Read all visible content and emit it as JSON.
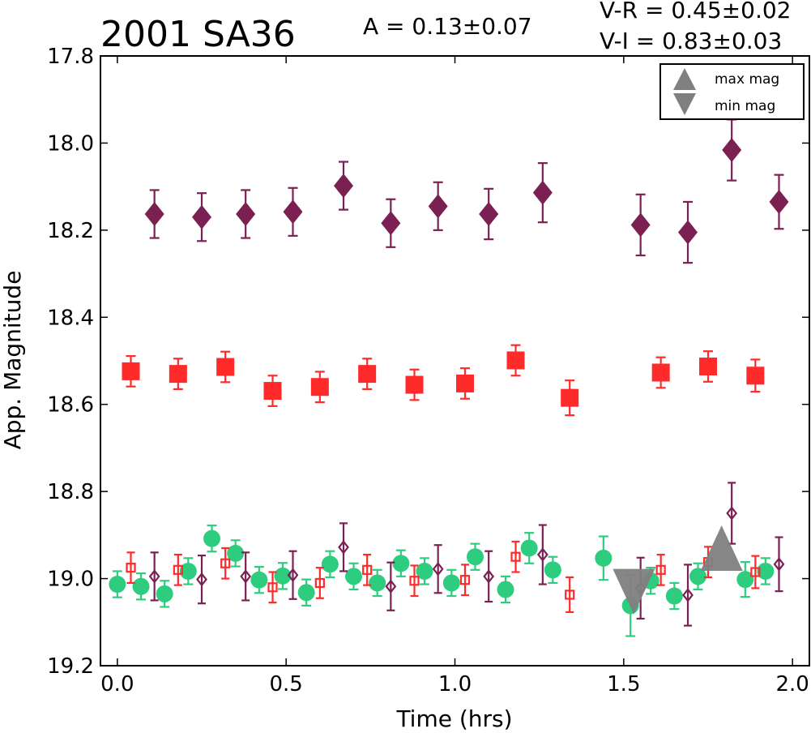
{
  "chart_data": {
    "type": "scatter",
    "title": "2001 SA36",
    "amplitude_text": "A  = 0.13±0.07",
    "color_lines": [
      "V-R = 0.45±0.02",
      "V-I  = 0.83±0.03"
    ],
    "xlabel": "Time (hrs)",
    "ylabel": "App. Magnitude",
    "xlim": [
      -0.05,
      2.05
    ],
    "ylim": [
      19.2,
      17.8
    ],
    "y_inverted": true,
    "grid": false,
    "xticks": [
      "0.0",
      "0.5",
      "1.0",
      "1.5",
      "2.0"
    ],
    "yticks": [
      "17.8",
      "18.0",
      "18.2",
      "18.4",
      "18.6",
      "18.8",
      "19.0",
      "19.2"
    ],
    "legend": {
      "position": "top-right",
      "entries": [
        {
          "label": "max mag",
          "marker": "triangle-up",
          "color": "#808080"
        },
        {
          "label": "min mag",
          "marker": "triangle-down",
          "color": "#808080"
        }
      ]
    },
    "series": [
      {
        "marker": "diamond",
        "filled": true,
        "color": "#7b2052",
        "points": [
          {
            "x": 0.11,
            "y": 18.163,
            "err": 0.055
          },
          {
            "x": 0.25,
            "y": 18.17,
            "err": 0.055
          },
          {
            "x": 0.38,
            "y": 18.163,
            "err": 0.055
          },
          {
            "x": 0.52,
            "y": 18.158,
            "err": 0.055
          },
          {
            "x": 0.67,
            "y": 18.098,
            "err": 0.055
          },
          {
            "x": 0.81,
            "y": 18.184,
            "err": 0.055
          },
          {
            "x": 0.95,
            "y": 18.145,
            "err": 0.055
          },
          {
            "x": 1.1,
            "y": 18.163,
            "err": 0.058
          },
          {
            "x": 1.26,
            "y": 18.114,
            "err": 0.068
          },
          {
            "x": 1.55,
            "y": 18.188,
            "err": 0.07
          },
          {
            "x": 1.69,
            "y": 18.205,
            "err": 0.07
          },
          {
            "x": 1.82,
            "y": 18.016,
            "err": 0.07
          },
          {
            "x": 1.96,
            "y": 18.135,
            "err": 0.062
          }
        ]
      },
      {
        "marker": "square",
        "filled": true,
        "color": "#ff2a2a",
        "points": [
          {
            "x": 0.04,
            "y": 18.524,
            "err": 0.035
          },
          {
            "x": 0.18,
            "y": 18.53,
            "err": 0.035
          },
          {
            "x": 0.32,
            "y": 18.514,
            "err": 0.035
          },
          {
            "x": 0.46,
            "y": 18.569,
            "err": 0.035
          },
          {
            "x": 0.6,
            "y": 18.56,
            "err": 0.035
          },
          {
            "x": 0.74,
            "y": 18.53,
            "err": 0.035
          },
          {
            "x": 0.88,
            "y": 18.555,
            "err": 0.035
          },
          {
            "x": 1.03,
            "y": 18.552,
            "err": 0.035
          },
          {
            "x": 1.18,
            "y": 18.499,
            "err": 0.035
          },
          {
            "x": 1.34,
            "y": 18.585,
            "err": 0.04
          },
          {
            "x": 1.61,
            "y": 18.527,
            "err": 0.035
          },
          {
            "x": 1.75,
            "y": 18.513,
            "err": 0.035
          },
          {
            "x": 1.89,
            "y": 18.534,
            "err": 0.037
          }
        ]
      },
      {
        "marker": "circle",
        "filled": true,
        "color": "#2ecc7f",
        "points": [
          {
            "x": 0.0,
            "y": 19.013,
            "err": 0.03
          },
          {
            "x": 0.07,
            "y": 19.018,
            "err": 0.03
          },
          {
            "x": 0.14,
            "y": 19.035,
            "err": 0.03
          },
          {
            "x": 0.21,
            "y": 18.983,
            "err": 0.03
          },
          {
            "x": 0.28,
            "y": 18.908,
            "err": 0.03
          },
          {
            "x": 0.35,
            "y": 18.942,
            "err": 0.03
          },
          {
            "x": 0.42,
            "y": 19.003,
            "err": 0.03
          },
          {
            "x": 0.49,
            "y": 18.994,
            "err": 0.03
          },
          {
            "x": 0.56,
            "y": 19.032,
            "err": 0.03
          },
          {
            "x": 0.63,
            "y": 18.967,
            "err": 0.03
          },
          {
            "x": 0.7,
            "y": 18.995,
            "err": 0.03
          },
          {
            "x": 0.77,
            "y": 19.01,
            "err": 0.03
          },
          {
            "x": 0.84,
            "y": 18.965,
            "err": 0.03
          },
          {
            "x": 0.91,
            "y": 18.983,
            "err": 0.03
          },
          {
            "x": 0.99,
            "y": 19.01,
            "err": 0.03
          },
          {
            "x": 1.06,
            "y": 18.95,
            "err": 0.03
          },
          {
            "x": 1.15,
            "y": 19.025,
            "err": 0.03
          },
          {
            "x": 1.22,
            "y": 18.93,
            "err": 0.035
          },
          {
            "x": 1.29,
            "y": 18.98,
            "err": 0.03
          },
          {
            "x": 1.44,
            "y": 18.953,
            "err": 0.05
          },
          {
            "x": 1.52,
            "y": 19.062,
            "err": 0.07
          },
          {
            "x": 1.58,
            "y": 19.005,
            "err": 0.03
          },
          {
            "x": 1.65,
            "y": 19.04,
            "err": 0.03
          },
          {
            "x": 1.72,
            "y": 18.995,
            "err": 0.03
          },
          {
            "x": 1.86,
            "y": 19.002,
            "err": 0.04
          },
          {
            "x": 1.92,
            "y": 18.983,
            "err": 0.03
          }
        ]
      },
      {
        "marker": "square",
        "filled": false,
        "color": "#ff2a2a",
        "points": [
          {
            "x": 0.04,
            "y": 18.975,
            "err": 0.035
          },
          {
            "x": 0.18,
            "y": 18.98,
            "err": 0.035
          },
          {
            "x": 0.32,
            "y": 18.965,
            "err": 0.035
          },
          {
            "x": 0.46,
            "y": 19.02,
            "err": 0.035
          },
          {
            "x": 0.6,
            "y": 19.01,
            "err": 0.035
          },
          {
            "x": 0.74,
            "y": 18.98,
            "err": 0.035
          },
          {
            "x": 0.88,
            "y": 19.005,
            "err": 0.035
          },
          {
            "x": 1.03,
            "y": 19.003,
            "err": 0.035
          },
          {
            "x": 1.18,
            "y": 18.95,
            "err": 0.035
          },
          {
            "x": 1.34,
            "y": 19.037,
            "err": 0.04
          },
          {
            "x": 1.61,
            "y": 18.98,
            "err": 0.035
          },
          {
            "x": 1.75,
            "y": 18.962,
            "err": 0.035
          },
          {
            "x": 1.89,
            "y": 18.985,
            "err": 0.037
          }
        ]
      },
      {
        "marker": "diamond",
        "filled": false,
        "color": "#7b2052",
        "points": [
          {
            "x": 0.11,
            "y": 18.995,
            "err": 0.055
          },
          {
            "x": 0.25,
            "y": 19.002,
            "err": 0.055
          },
          {
            "x": 0.38,
            "y": 18.995,
            "err": 0.055
          },
          {
            "x": 0.52,
            "y": 18.992,
            "err": 0.055
          },
          {
            "x": 0.67,
            "y": 18.928,
            "err": 0.055
          },
          {
            "x": 0.81,
            "y": 19.018,
            "err": 0.055
          },
          {
            "x": 0.95,
            "y": 18.978,
            "err": 0.055
          },
          {
            "x": 1.1,
            "y": 18.995,
            "err": 0.058
          },
          {
            "x": 1.26,
            "y": 18.945,
            "err": 0.068
          },
          {
            "x": 1.55,
            "y": 19.022,
            "err": 0.07
          },
          {
            "x": 1.69,
            "y": 19.038,
            "err": 0.07
          },
          {
            "x": 1.82,
            "y": 18.85,
            "err": 0.07
          },
          {
            "x": 1.96,
            "y": 18.967,
            "err": 0.062
          }
        ]
      }
    ],
    "extrema_markers": [
      {
        "type": "max",
        "marker": "triangle-up",
        "x": 1.79,
        "y": 18.93,
        "color": "#808080"
      },
      {
        "type": "min",
        "marker": "triangle-down",
        "x": 1.53,
        "y": 19.03,
        "color": "#808080"
      }
    ]
  }
}
